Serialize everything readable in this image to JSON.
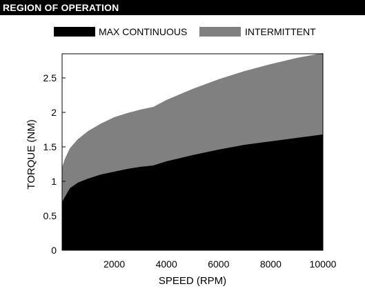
{
  "header": {
    "title": "REGION OF OPERATION"
  },
  "colors": {
    "max_continuous": "#000000",
    "intermittent": "#808080",
    "title_bar": "#000000"
  },
  "chart_data": {
    "type": "area",
    "title": "REGION OF OPERATION",
    "xlabel": "SPEED (RPM)",
    "ylabel": "TORQUE (NM)",
    "xlim": [
      0,
      10000
    ],
    "ylim": [
      0,
      2.85
    ],
    "xticks": [
      2000,
      4000,
      6000,
      8000,
      10000
    ],
    "yticks": [
      0,
      0.5,
      1,
      1.5,
      2,
      2.5
    ],
    "grid": false,
    "legend_position": "top",
    "series": [
      {
        "name": "MAX CONTINUOUS",
        "color": "#000000",
        "x": [
          0,
          100,
          300,
          600,
          1000,
          1500,
          2000,
          2500,
          3000,
          3500,
          4000,
          5000,
          6000,
          7000,
          8000,
          9000,
          10000
        ],
        "y": [
          0.7,
          0.77,
          0.9,
          0.98,
          1.04,
          1.1,
          1.14,
          1.18,
          1.21,
          1.23,
          1.29,
          1.38,
          1.46,
          1.53,
          1.58,
          1.63,
          1.68
        ]
      },
      {
        "name": "INTERMITTENT",
        "color": "#808080",
        "x": [
          0,
          100,
          300,
          600,
          1000,
          1500,
          2000,
          2500,
          3000,
          3500,
          4000,
          5000,
          6000,
          7000,
          8000,
          9000,
          10000
        ],
        "y": [
          1.2,
          1.32,
          1.48,
          1.61,
          1.73,
          1.84,
          1.93,
          1.99,
          2.04,
          2.08,
          2.18,
          2.34,
          2.48,
          2.6,
          2.7,
          2.79,
          2.86
        ]
      }
    ]
  }
}
